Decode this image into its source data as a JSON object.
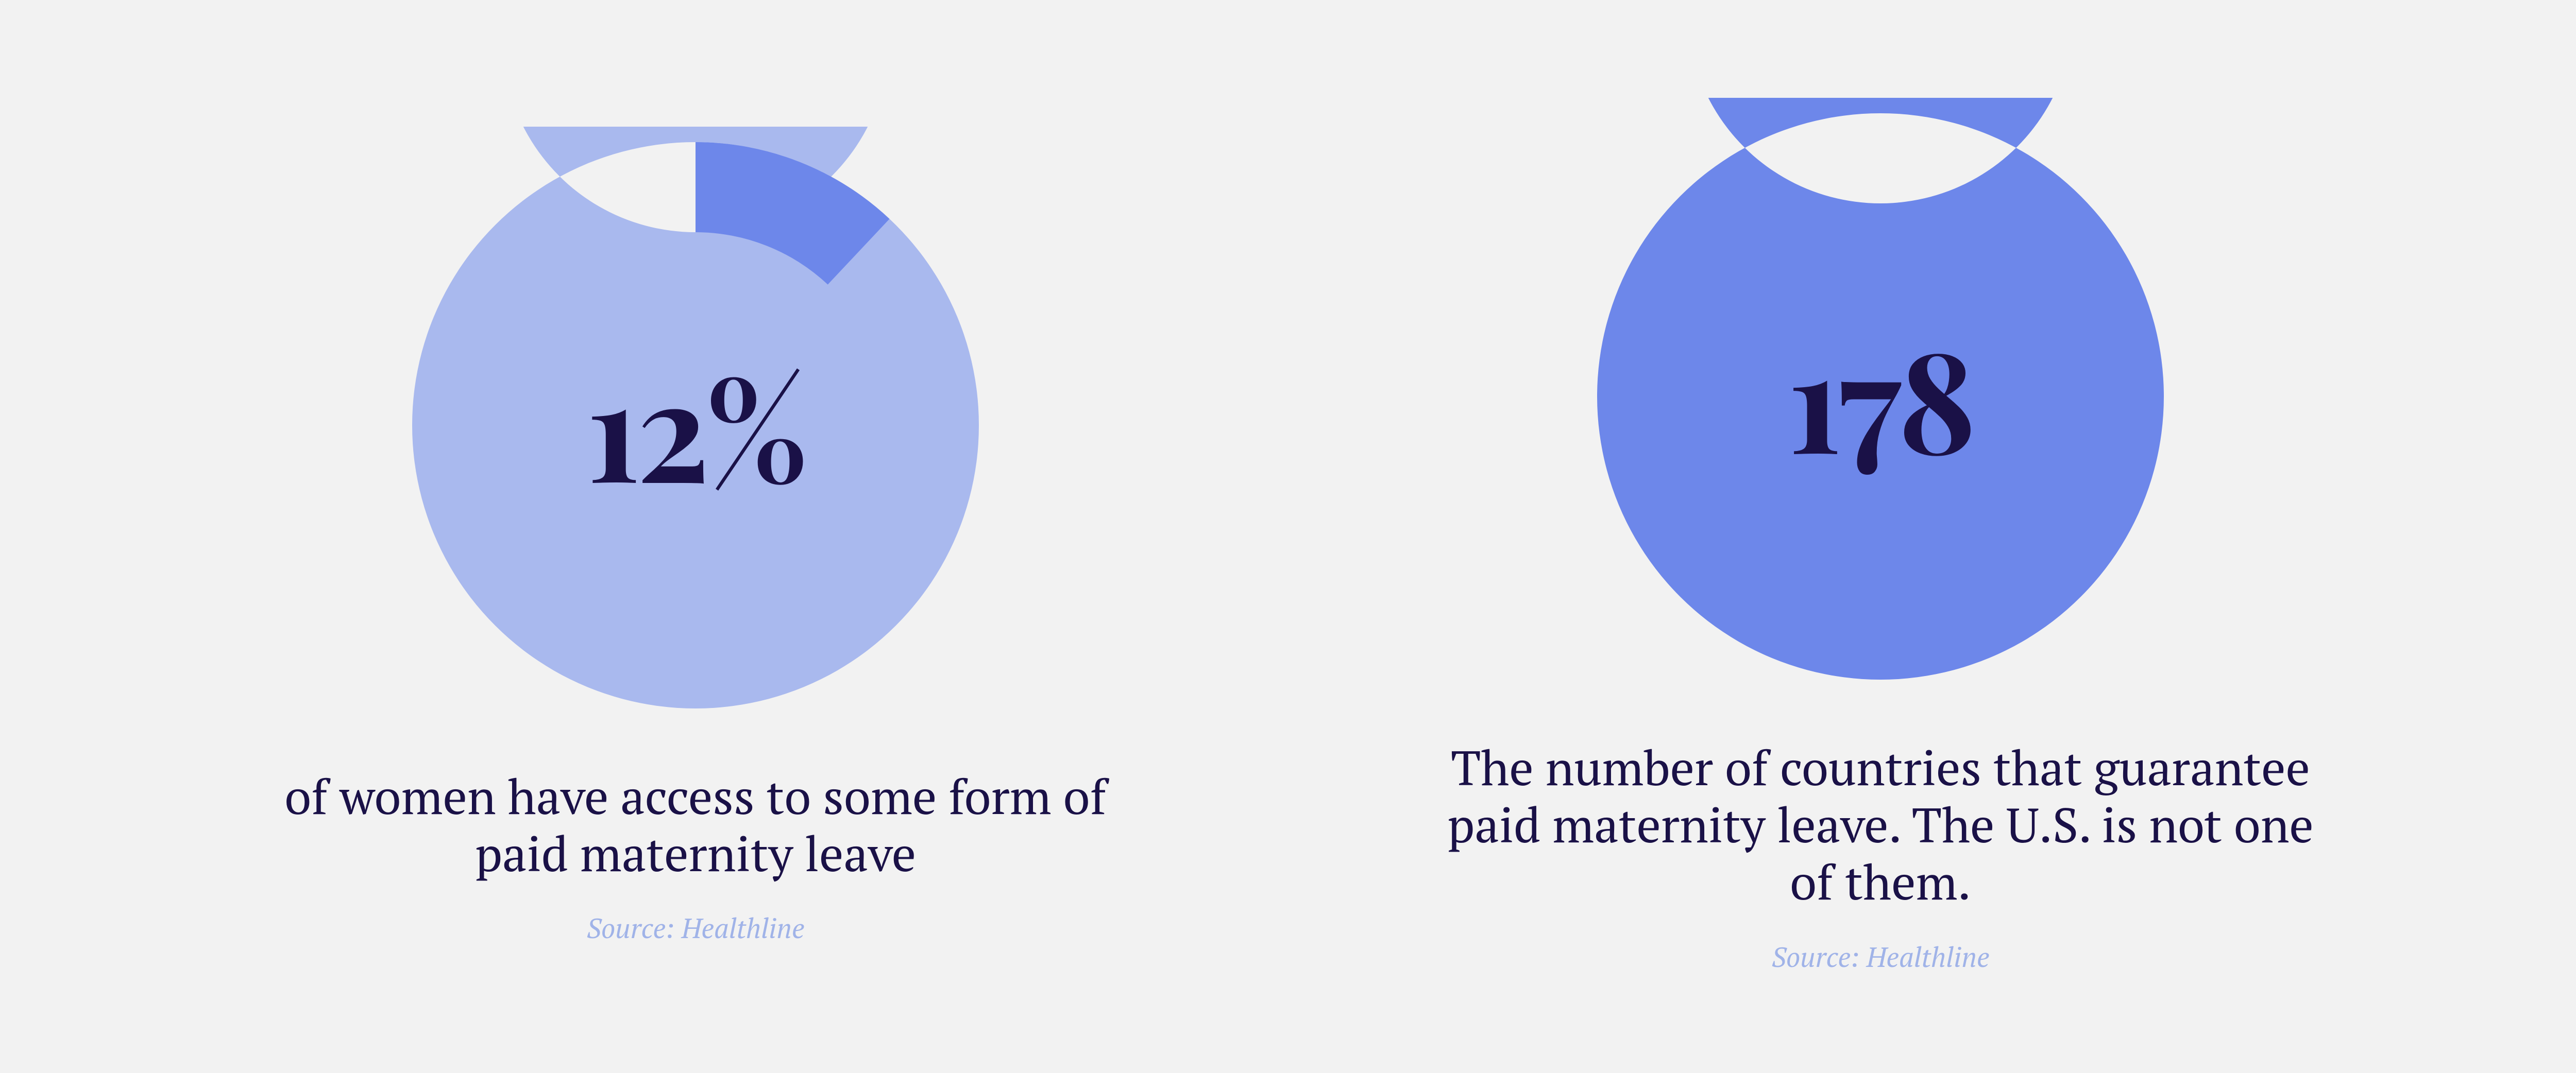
{
  "background_color": "#f2f2f2",
  "text_color": "#1a1147",
  "source_color": "#a0b3e8",
  "panels": [
    {
      "type": "donut",
      "value_pct": 12,
      "center_label": "12%",
      "caption": "of women have access to some form of paid maternity leave",
      "source": "Source: Healthline",
      "ring": {
        "outer_radius": 550,
        "inner_radius": 375,
        "track_color": "#a9b9ee",
        "fill_color": "#6d87ea",
        "start_angle_deg": 0,
        "sweep_deg": 43.2
      },
      "center_font_size": 270,
      "caption_font_size": 94,
      "source_font_size": 54
    },
    {
      "type": "donut",
      "value_pct": 100,
      "center_label": "178",
      "caption": "The number of countries that guarantee paid maternity leave. The U.S. is not one of them.",
      "source": "Source: Healthline",
      "ring": {
        "outer_radius": 550,
        "inner_radius": 375,
        "track_color": "#6d87ea",
        "fill_color": "#6d87ea",
        "start_angle_deg": 0,
        "sweep_deg": 360
      },
      "center_font_size": 270,
      "caption_font_size": 94,
      "source_font_size": 54
    }
  ]
}
